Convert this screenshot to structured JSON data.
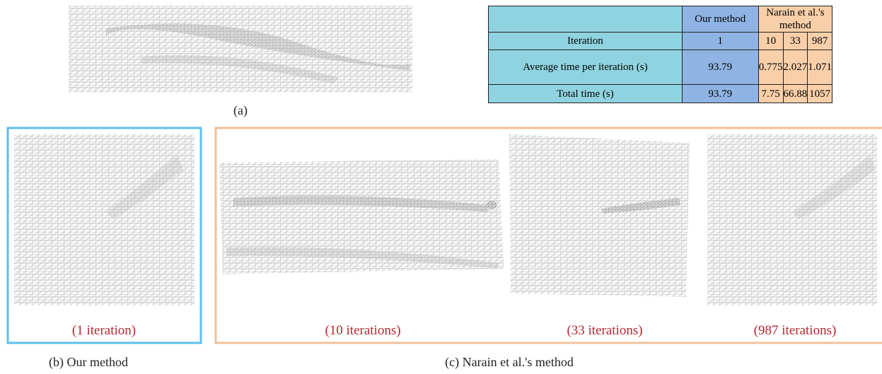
{
  "panel_a": {
    "caption": "(a)"
  },
  "table": {
    "header": [
      "Our method",
      "Narain et al.'s method"
    ],
    "rows": [
      [
        "Iteration",
        "1",
        "10",
        "33",
        "987"
      ],
      [
        "Average time per iteration (s)",
        "93.79",
        "0.775",
        "2.027",
        "1.071"
      ],
      [
        "Total time (s)",
        "93.79",
        "7.75",
        "66.88",
        "1057"
      ]
    ]
  },
  "panel_b": {
    "label": "(1 iteration)",
    "caption": "(b) Our method"
  },
  "panel_c": {
    "labels": [
      "(10 iterations)",
      "(33 iterations)",
      "(987 iterations)"
    ],
    "caption": "(c) Narain et al.'s method"
  }
}
